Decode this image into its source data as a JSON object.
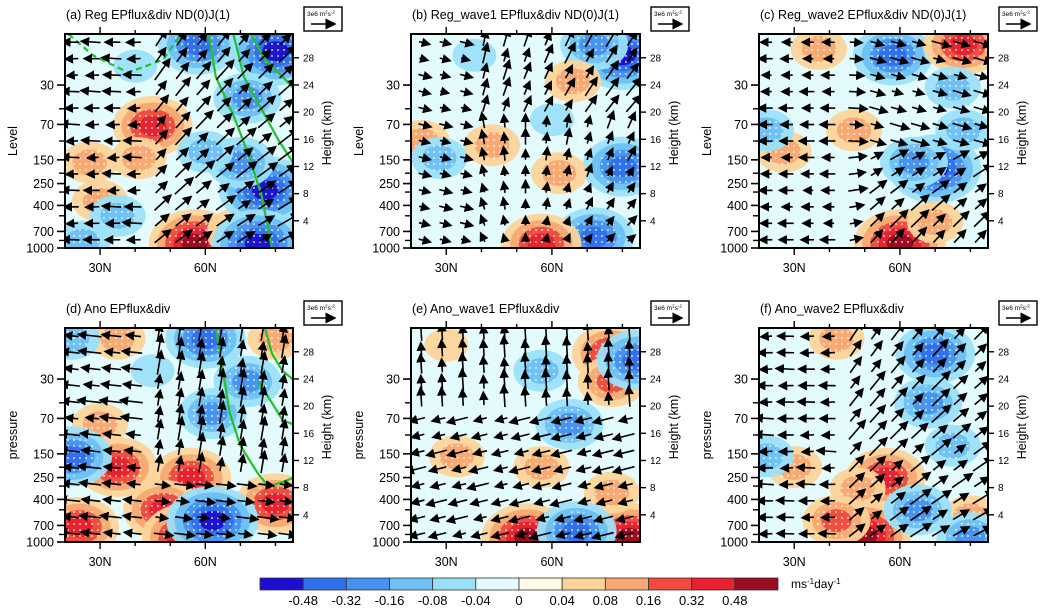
{
  "figure": {
    "colorbar": {
      "levels": [
        "-0.48",
        "-0.32",
        "-0.16",
        "-0.08",
        "-0.04",
        "0",
        "0.04",
        "0.08",
        "0.16",
        "0.32",
        "0.48"
      ],
      "colors": [
        "#1a0fd0",
        "#2f6fec",
        "#4592f0",
        "#6cc0f4",
        "#9be0fa",
        "#e4fbfd",
        "#fefbe4",
        "#fcd49a",
        "#f8a870",
        "#ef4a3c",
        "#e8202e",
        "#9c0a22"
      ],
      "unit_main": "ms",
      "unit_sup1": "-1",
      "unit_mid": "day",
      "unit_sup2": "-1"
    },
    "reference_vector": {
      "value": "3e6 m",
      "sup1": "2",
      "mid": "s",
      "sup2": "-2"
    },
    "contour_color": "#22c02a",
    "stipple_color": "#ffffff",
    "vector_color": "#000000"
  },
  "chart_data": [
    {
      "type": "heatmap",
      "panel": "a",
      "title": "(a) Reg EPflux&div  ND(0)J(1)",
      "xlabel": "",
      "ylabel": "Level",
      "ylabel_right": "Height (km)",
      "x_ticks": [
        "30N",
        "60N"
      ],
      "x_range": [
        20,
        85
      ],
      "y_ticks_left": [
        "30",
        "70",
        "150",
        "250",
        "400",
        "700",
        "1000"
      ],
      "y_ticks_right": [
        "28",
        "24",
        "20",
        "16",
        "12",
        "8",
        "4"
      ],
      "y_range_hPa": [
        1000,
        10
      ],
      "shading": "EP flux divergence regression",
      "overlays": [
        "EP flux vectors",
        "stippling (significance)",
        "green zonal-wind contours (solid & dashed)"
      ],
      "blobs": [
        {
          "lat": 45,
          "lev": 0.57,
          "val": 0.32
        },
        {
          "lat": 41,
          "lev": 0.42,
          "val": 0.08
        },
        {
          "lat": 27,
          "lev": 0.4,
          "val": 0.08
        },
        {
          "lat": 30,
          "lev": 0.22,
          "val": 0.08
        },
        {
          "lat": 57,
          "lev": 0.02,
          "val": 0.48
        },
        {
          "lat": 70,
          "lev": 0.07,
          "val": 0.16
        },
        {
          "lat": 58,
          "lev": 0.95,
          "val": -0.32
        },
        {
          "lat": 80,
          "lev": 0.92,
          "val": -0.48
        },
        {
          "lat": 77,
          "lev": 0.27,
          "val": -0.48
        },
        {
          "lat": 72,
          "lev": 0.7,
          "val": -0.16
        },
        {
          "lat": 70,
          "lev": 0.4,
          "val": -0.16
        },
        {
          "lat": 60,
          "lev": 0.45,
          "val": -0.08
        },
        {
          "lat": 75,
          "lev": 0.02,
          "val": -0.48
        },
        {
          "lat": 25,
          "lev": 0.03,
          "val": -0.08
        },
        {
          "lat": 35,
          "lev": 0.15,
          "val": -0.08
        },
        {
          "lat": 40,
          "lev": 0.85,
          "val": -0.04
        }
      ],
      "contours": [
        {
          "style": "dashed",
          "pts": [
            [
              21,
              1.0
            ],
            [
              28,
              0.9
            ],
            [
              38,
              0.82
            ],
            [
              48,
              0.88
            ],
            [
              53,
              1.0
            ]
          ]
        },
        {
          "style": "solid",
          "pts": [
            [
              61,
              1.0
            ],
            [
              63,
              0.8
            ],
            [
              68,
              0.62
            ],
            [
              72,
              0.45
            ],
            [
              76,
              0.25
            ],
            [
              79,
              0.0
            ]
          ]
        },
        {
          "style": "solid",
          "pts": [
            [
              68,
              1.0
            ],
            [
              71,
              0.8
            ],
            [
              76,
              0.65
            ],
            [
              81,
              0.5
            ],
            [
              85,
              0.4
            ]
          ]
        },
        {
          "style": "solid",
          "pts": [
            [
              73,
              1.0
            ],
            [
              77,
              0.88
            ],
            [
              82,
              0.8
            ],
            [
              85,
              0.75
            ]
          ]
        }
      ],
      "flow": "poleward-upward"
    },
    {
      "type": "heatmap",
      "panel": "b",
      "title": "(b) Reg_wave1 EPflux&div  ND(0)J(1)",
      "xlabel": "",
      "ylabel": "Level",
      "ylabel_right": "Height (km)",
      "x_ticks": [
        "30N",
        "60N"
      ],
      "x_range": [
        20,
        85
      ],
      "y_ticks_left": [
        "30",
        "70",
        "150",
        "250",
        "400",
        "700",
        "1000"
      ],
      "y_ticks_right": [
        "28",
        "24",
        "20",
        "16",
        "12",
        "8",
        "4"
      ],
      "y_range_hPa": [
        1000,
        10
      ],
      "blobs": [
        {
          "lat": 80,
          "lev": 0.9,
          "val": -0.48
        },
        {
          "lat": 72,
          "lev": 0.95,
          "val": -0.16
        },
        {
          "lat": 80,
          "lev": 0.38,
          "val": -0.32
        },
        {
          "lat": 72,
          "lev": 0.05,
          "val": -0.32
        },
        {
          "lat": 57,
          "lev": 0.02,
          "val": 0.32
        },
        {
          "lat": 43,
          "lev": 0.48,
          "val": 0.08
        },
        {
          "lat": 23,
          "lev": 0.5,
          "val": 0.08
        },
        {
          "lat": 28,
          "lev": 0.42,
          "val": -0.08
        },
        {
          "lat": 62,
          "lev": 0.35,
          "val": 0.08
        },
        {
          "lat": 66,
          "lev": 0.78,
          "val": 0.08
        },
        {
          "lat": 38,
          "lev": 0.9,
          "val": -0.04
        },
        {
          "lat": 60,
          "lev": 0.6,
          "val": -0.04
        }
      ],
      "contours": [],
      "flow": "upward-converging"
    },
    {
      "type": "heatmap",
      "panel": "c",
      "title": "(c) Reg_wave2 EPflux&div  ND(0)J(1)",
      "xlabel": "",
      "ylabel": "Level",
      "ylabel_right": "Height (km)",
      "x_ticks": [
        "30N",
        "60N"
      ],
      "x_range": [
        20,
        85
      ],
      "y_ticks_left": [
        "30",
        "70",
        "150",
        "250",
        "400",
        "700",
        "1000"
      ],
      "y_ticks_right": [
        "28",
        "24",
        "20",
        "16",
        "12",
        "8",
        "4"
      ],
      "y_range_hPa": [
        1000,
        10
      ],
      "blobs": [
        {
          "lat": 58,
          "lev": 0.9,
          "val": -0.32
        },
        {
          "lat": 78,
          "lev": 0.95,
          "val": 0.32
        },
        {
          "lat": 37,
          "lev": 0.93,
          "val": 0.08
        },
        {
          "lat": 70,
          "lev": 0.37,
          "val": -0.48
        },
        {
          "lat": 64,
          "lev": 0.4,
          "val": -0.16
        },
        {
          "lat": 60,
          "lev": 0.02,
          "val": 0.48
        },
        {
          "lat": 70,
          "lev": 0.12,
          "val": 0.08
        },
        {
          "lat": 47,
          "lev": 0.55,
          "val": 0.08
        },
        {
          "lat": 27,
          "lev": 0.45,
          "val": 0.08
        },
        {
          "lat": 78,
          "lev": 0.55,
          "val": -0.08
        },
        {
          "lat": 22,
          "lev": 0.55,
          "val": -0.08
        },
        {
          "lat": 75,
          "lev": 0.75,
          "val": -0.08
        }
      ],
      "contours": [],
      "flow": "arching-poleward"
    },
    {
      "type": "heatmap",
      "panel": "d",
      "title": "(d) Ano EPflux&div",
      "xlabel": "",
      "ylabel": "pressure",
      "ylabel_right": "Height (km)",
      "x_ticks": [
        "30N",
        "60N"
      ],
      "x_range": [
        20,
        85
      ],
      "y_ticks_left": [
        "30",
        "70",
        "150",
        "250",
        "400",
        "700",
        "1000"
      ],
      "y_ticks_right": [
        "28",
        "24",
        "20",
        "16",
        "12",
        "8",
        "4"
      ],
      "y_range_hPa": [
        1000,
        10
      ],
      "blobs": [
        {
          "lat": 56,
          "lev": 0.3,
          "val": 0.32
        },
        {
          "lat": 48,
          "lev": 0.15,
          "val": 0.32
        },
        {
          "lat": 35,
          "lev": 0.35,
          "val": 0.32
        },
        {
          "lat": 30,
          "lev": 0.55,
          "val": 0.08
        },
        {
          "lat": 24,
          "lev": 0.07,
          "val": 0.32
        },
        {
          "lat": 55,
          "lev": 0.02,
          "val": 0.48
        },
        {
          "lat": 80,
          "lev": 0.18,
          "val": 0.32
        },
        {
          "lat": 22,
          "lev": 0.4,
          "val": -0.32
        },
        {
          "lat": 62,
          "lev": 0.1,
          "val": -0.48
        },
        {
          "lat": 62,
          "lev": 0.6,
          "val": -0.16
        },
        {
          "lat": 60,
          "lev": 0.95,
          "val": -0.32
        },
        {
          "lat": 72,
          "lev": 0.75,
          "val": -0.16
        },
        {
          "lat": 35,
          "lev": 0.95,
          "val": 0.08
        },
        {
          "lat": 80,
          "lev": 0.95,
          "val": 0.08
        },
        {
          "lat": 22,
          "lev": 0.95,
          "val": -0.08
        },
        {
          "lat": 45,
          "lev": 0.8,
          "val": -0.04
        }
      ],
      "contours": [
        {
          "style": "solid",
          "pts": [
            [
              63,
              1.0
            ],
            [
              65,
              0.8
            ],
            [
              67,
              0.6
            ],
            [
              70,
              0.45
            ],
            [
              75,
              0.32
            ],
            [
              78,
              0.26
            ],
            [
              82,
              0.28
            ],
            [
              85,
              0.3
            ]
          ]
        },
        {
          "style": "solid",
          "pts": [
            [
              77,
              1.0
            ],
            [
              79,
              0.88
            ],
            [
              82,
              0.8
            ],
            [
              85,
              0.76
            ]
          ]
        },
        {
          "style": "solid",
          "pts": [
            [
              75,
              0.75
            ],
            [
              79,
              0.65
            ],
            [
              82,
              0.57
            ],
            [
              85,
              0.55
            ]
          ]
        }
      ],
      "flow": "equatorward-upper-poleward-upward"
    },
    {
      "type": "heatmap",
      "panel": "e",
      "title": "(e) Ano_wave1 EPflux&div",
      "xlabel": "",
      "ylabel": "pressure",
      "ylabel_right": "Height (km)",
      "x_ticks": [
        "30N",
        "60N"
      ],
      "x_range": [
        20,
        85
      ],
      "y_ticks_left": [
        "30",
        "70",
        "150",
        "250",
        "400",
        "700",
        "1000"
      ],
      "y_ticks_right": [
        "28",
        "24",
        "20",
        "16",
        "12",
        "8",
        "4"
      ],
      "y_range_hPa": [
        1000,
        10
      ],
      "blobs": [
        {
          "lat": 77,
          "lev": 0.88,
          "val": 0.32
        },
        {
          "lat": 77,
          "lev": 0.75,
          "val": 0.16
        },
        {
          "lat": 53,
          "lev": 0.02,
          "val": 0.48
        },
        {
          "lat": 82,
          "lev": 0.02,
          "val": 0.48
        },
        {
          "lat": 33,
          "lev": 0.4,
          "val": 0.08
        },
        {
          "lat": 57,
          "lev": 0.35,
          "val": 0.08
        },
        {
          "lat": 77,
          "lev": 0.23,
          "val": 0.08
        },
        {
          "lat": 65,
          "lev": 0.55,
          "val": -0.16
        },
        {
          "lat": 67,
          "lev": 0.05,
          "val": -0.32
        },
        {
          "lat": 84,
          "lev": 0.85,
          "val": -0.32
        },
        {
          "lat": 57,
          "lev": 0.8,
          "val": -0.08
        },
        {
          "lat": 30,
          "lev": 0.92,
          "val": 0.04
        }
      ],
      "contours": [],
      "flow": "equatorward-lower-upward-mid"
    },
    {
      "type": "heatmap",
      "panel": "f",
      "title": "(f) Ano_wave2 EPflux&div",
      "xlabel": "",
      "ylabel": "pressure",
      "ylabel_right": "Height (km)",
      "x_ticks": [
        "30N",
        "60N"
      ],
      "x_range": [
        20,
        85
      ],
      "y_ticks_left": [
        "30",
        "70",
        "150",
        "250",
        "400",
        "700",
        "1000"
      ],
      "y_ticks_right": [
        "28",
        "24",
        "20",
        "16",
        "12",
        "8",
        "4"
      ],
      "y_range_hPa": [
        1000,
        10
      ],
      "blobs": [
        {
          "lat": 56,
          "lev": 0.3,
          "val": 0.32
        },
        {
          "lat": 48,
          "lev": 0.25,
          "val": 0.08
        },
        {
          "lat": 50,
          "lev": 0.03,
          "val": 0.48
        },
        {
          "lat": 42,
          "lev": 0.1,
          "val": 0.16
        },
        {
          "lat": 30,
          "lev": 0.35,
          "val": 0.08
        },
        {
          "lat": 80,
          "lev": 0.12,
          "val": 0.08
        },
        {
          "lat": 42,
          "lev": 0.95,
          "val": 0.08
        },
        {
          "lat": 70,
          "lev": 0.88,
          "val": -0.32
        },
        {
          "lat": 68,
          "lev": 0.65,
          "val": -0.16
        },
        {
          "lat": 65,
          "lev": 0.15,
          "val": -0.16
        },
        {
          "lat": 75,
          "lev": 0.45,
          "val": -0.08
        },
        {
          "lat": 22,
          "lev": 0.4,
          "val": -0.08
        },
        {
          "lat": 80,
          "lev": 0.02,
          "val": -0.16
        }
      ],
      "contours": [],
      "flow": "poleward-upward"
    }
  ]
}
